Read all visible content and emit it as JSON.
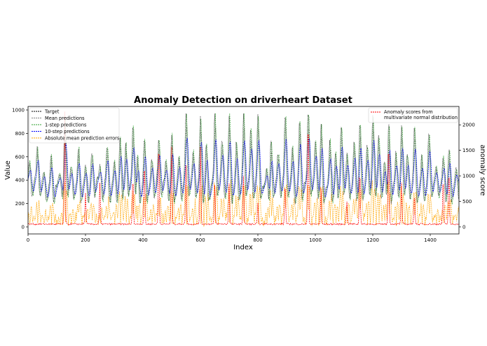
{
  "chart_data": {
    "type": "line",
    "title": "Anomaly Detection on driverheart Dataset",
    "xlabel": "Index",
    "ylabel": "Value",
    "y2label": "anomaly score",
    "xlim": [
      0,
      1500
    ],
    "ylim": [
      -60,
      1030
    ],
    "y2lim": [
      -138,
      2360
    ],
    "xticks": [
      "0",
      "200",
      "400",
      "600",
      "800",
      "1000",
      "1200",
      "1400"
    ],
    "yticks": [
      "0",
      "200",
      "400",
      "600",
      "800",
      "1000"
    ],
    "y2ticks": [
      "0",
      "500",
      "1000",
      "1500",
      "2000"
    ],
    "grid": false,
    "legend_left": {
      "placement": "upper-left",
      "entries": [
        {
          "label": "Target",
          "color": "#000000"
        },
        {
          "label": "Mean predictions",
          "color": "#7f7f7f"
        },
        {
          "label": "1-step predictions",
          "color": "#2ca02c"
        },
        {
          "label": "10-step predictions",
          "color": "#0000ff"
        },
        {
          "label": "Absolute mean prediction errors",
          "color": "#ffa500"
        }
      ]
    },
    "legend_right": {
      "placement": "upper-right",
      "entries": [
        {
          "label_lines": [
            "Anomaly scores from",
            "multivariate normal distribution"
          ],
          "color": "#ff0000"
        }
      ]
    },
    "baseline": 380,
    "peaks": [
      {
        "x": 5,
        "v": 560
      },
      {
        "x": 32,
        "v": 660
      },
      {
        "x": 55,
        "v": 470
      },
      {
        "x": 80,
        "v": 640
      },
      {
        "x": 110,
        "v": 460
      },
      {
        "x": 128,
        "v": 900
      },
      {
        "x": 150,
        "v": 500
      },
      {
        "x": 175,
        "v": 700
      },
      {
        "x": 200,
        "v": 550
      },
      {
        "x": 222,
        "v": 630
      },
      {
        "x": 250,
        "v": 500
      },
      {
        "x": 275,
        "v": 720
      },
      {
        "x": 300,
        "v": 600
      },
      {
        "x": 320,
        "v": 760
      },
      {
        "x": 340,
        "v": 680
      },
      {
        "x": 365,
        "v": 850
      },
      {
        "x": 380,
        "v": 660
      },
      {
        "x": 405,
        "v": 770
      },
      {
        "x": 430,
        "v": 600
      },
      {
        "x": 455,
        "v": 720
      },
      {
        "x": 480,
        "v": 580
      },
      {
        "x": 500,
        "v": 840
      },
      {
        "x": 525,
        "v": 620
      },
      {
        "x": 550,
        "v": 960
      },
      {
        "x": 575,
        "v": 620
      },
      {
        "x": 600,
        "v": 960
      },
      {
        "x": 620,
        "v": 740
      },
      {
        "x": 650,
        "v": 960
      },
      {
        "x": 675,
        "v": 720
      },
      {
        "x": 700,
        "v": 960
      },
      {
        "x": 725,
        "v": 760
      },
      {
        "x": 750,
        "v": 960
      },
      {
        "x": 775,
        "v": 820
      },
      {
        "x": 800,
        "v": 960
      },
      {
        "x": 830,
        "v": 540
      },
      {
        "x": 845,
        "v": 800
      },
      {
        "x": 870,
        "v": 620
      },
      {
        "x": 895,
        "v": 950
      },
      {
        "x": 920,
        "v": 700
      },
      {
        "x": 945,
        "v": 960
      },
      {
        "x": 975,
        "v": 960
      },
      {
        "x": 1000,
        "v": 720
      },
      {
        "x": 1020,
        "v": 880
      },
      {
        "x": 1050,
        "v": 760
      },
      {
        "x": 1070,
        "v": 620
      },
      {
        "x": 1090,
        "v": 840
      },
      {
        "x": 1110,
        "v": 620
      },
      {
        "x": 1135,
        "v": 760
      },
      {
        "x": 1155,
        "v": 920
      },
      {
        "x": 1180,
        "v": 700
      },
      {
        "x": 1200,
        "v": 940
      },
      {
        "x": 1220,
        "v": 760
      },
      {
        "x": 1240,
        "v": 600
      },
      {
        "x": 1255,
        "v": 960
      },
      {
        "x": 1280,
        "v": 640
      },
      {
        "x": 1300,
        "v": 840
      },
      {
        "x": 1320,
        "v": 600
      },
      {
        "x": 1345,
        "v": 880
      },
      {
        "x": 1370,
        "v": 640
      },
      {
        "x": 1395,
        "v": 800
      },
      {
        "x": 1420,
        "v": 500
      },
      {
        "x": 1445,
        "v": 600
      },
      {
        "x": 1465,
        "v": 700
      },
      {
        "x": 1490,
        "v": 520
      }
    ],
    "anomaly_peaks": [
      {
        "x": 128,
        "s": 2200
      },
      {
        "x": 200,
        "s": 600
      },
      {
        "x": 250,
        "s": 800
      },
      {
        "x": 365,
        "s": 900
      },
      {
        "x": 405,
        "s": 1200
      },
      {
        "x": 455,
        "s": 1600
      },
      {
        "x": 500,
        "s": 1500
      },
      {
        "x": 550,
        "s": 1150
      },
      {
        "x": 600,
        "s": 1500
      },
      {
        "x": 650,
        "s": 750
      },
      {
        "x": 700,
        "s": 800
      },
      {
        "x": 750,
        "s": 950
      },
      {
        "x": 800,
        "s": 400
      },
      {
        "x": 895,
        "s": 800
      },
      {
        "x": 975,
        "s": 2050
      },
      {
        "x": 1020,
        "s": 700
      },
      {
        "x": 1110,
        "s": 450
      },
      {
        "x": 1155,
        "s": 1050
      },
      {
        "x": 1255,
        "s": 1620
      },
      {
        "x": 1300,
        "s": 800
      },
      {
        "x": 1345,
        "s": 600
      },
      {
        "x": 1445,
        "s": 900
      },
      {
        "x": 1465,
        "s": 1050
      }
    ]
  }
}
